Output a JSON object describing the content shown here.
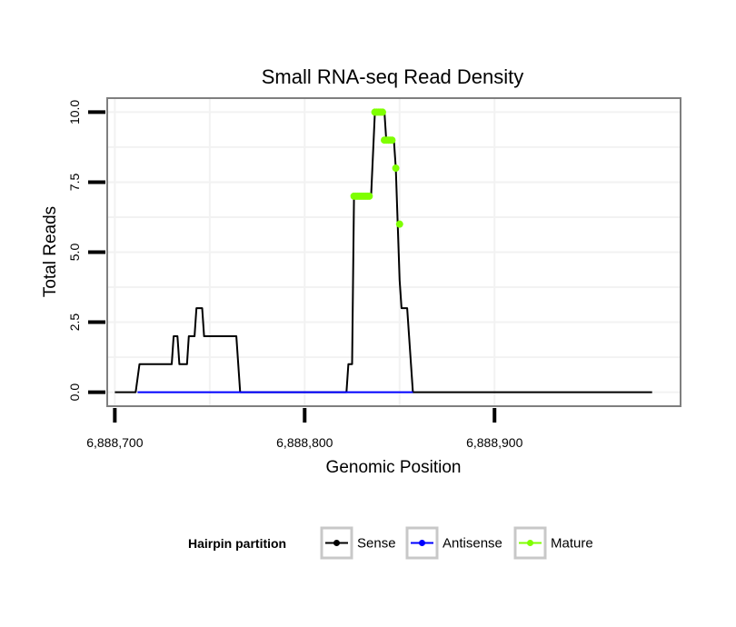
{
  "chart_data": {
    "type": "line",
    "title": "Small RNA-seq Read Density",
    "xlabel": "Genomic Position",
    "ylabel": "Total Reads",
    "xlim": [
      6888696,
      6888998
    ],
    "ylim": [
      -0.5,
      10.5
    ],
    "x_ticks": [
      6888700,
      6888800,
      6888900
    ],
    "x_tick_labels": [
      "6,888,700",
      "6,888,800",
      "6,888,900"
    ],
    "y_ticks": [
      0,
      2.5,
      5,
      7.5,
      10
    ],
    "y_tick_labels": [
      "0.0",
      "2.5",
      "5.0",
      "7.5",
      "10.0"
    ],
    "grid": true,
    "legend": {
      "title": "Hairpin partition",
      "position": "bottom",
      "entries": [
        {
          "name": "Sense",
          "color": "#000000"
        },
        {
          "name": "Antisense",
          "color": "#0000ff"
        },
        {
          "name": "Mature",
          "color": "#7fff00"
        }
      ]
    },
    "series": [
      {
        "name": "Sense",
        "color": "#000000",
        "x": [
          6888700,
          6888711,
          6888712,
          6888713,
          6888730,
          6888731,
          6888733,
          6888734,
          6888738,
          6888739,
          6888742,
          6888743,
          6888746,
          6888747,
          6888751,
          6888752,
          6888764,
          6888765,
          6888766,
          6888822,
          6888823,
          6888825,
          6888826,
          6888827,
          6888834,
          6888835,
          6888837,
          6888838,
          6888842,
          6888843,
          6888847,
          6888848,
          6888849,
          6888850,
          6888851,
          6888854,
          6888855,
          6888856,
          6888857,
          6888983
        ],
        "y": [
          0,
          0,
          0.5,
          1,
          1,
          2,
          2,
          1,
          1,
          2,
          2,
          3,
          3,
          2,
          2,
          2,
          2,
          1,
          0,
          0,
          1,
          1,
          7,
          7,
          7,
          7,
          10,
          10,
          10,
          9,
          9,
          8,
          6,
          4,
          3,
          3,
          2,
          1,
          0,
          0
        ]
      },
      {
        "name": "Antisense",
        "color": "#0000ff",
        "x": [
          6888712,
          6888857
        ],
        "y": [
          0,
          0
        ]
      },
      {
        "name": "Mature",
        "color": "#7fff00",
        "x": [
          6888826,
          6888827,
          6888828,
          6888829,
          6888830,
          6888831,
          6888832,
          6888833,
          6888834,
          6888837,
          6888838,
          6888839,
          6888840,
          6888841,
          6888842,
          6888843,
          6888844,
          6888845,
          6888846,
          6888848,
          6888850
        ],
        "y": [
          7,
          7,
          7,
          7,
          7,
          7,
          7,
          7,
          7,
          10,
          10,
          10,
          10,
          10,
          9,
          9,
          9,
          9,
          9,
          8,
          6
        ]
      }
    ]
  }
}
